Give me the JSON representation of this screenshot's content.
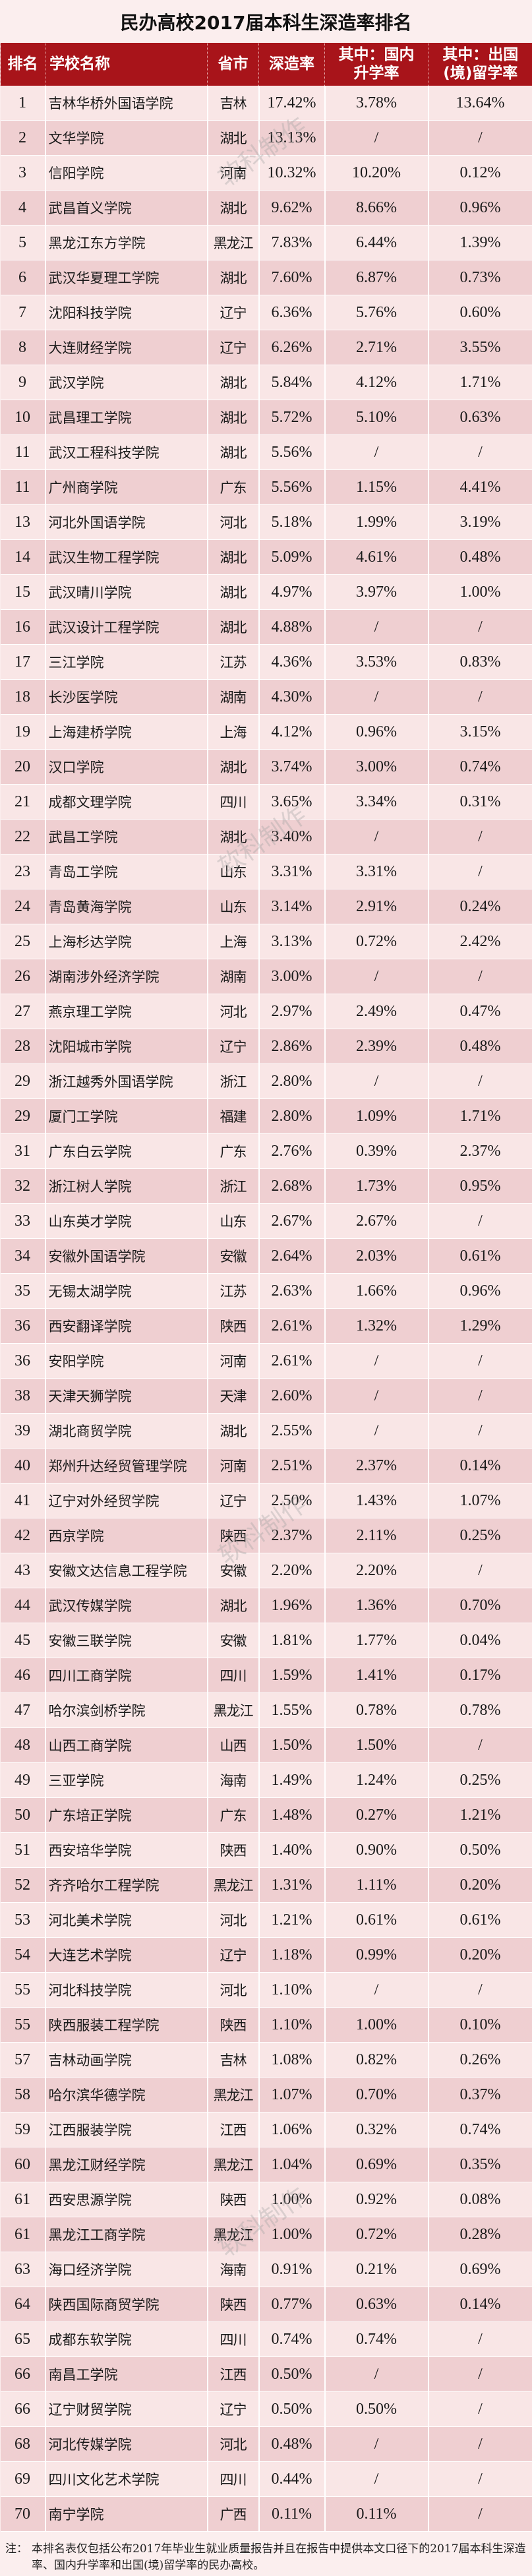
{
  "title": "民办高校2017届本科生深造率排名",
  "headers": {
    "rank": "排名",
    "name": "学校名称",
    "province": "省市",
    "rate": "深造率",
    "domestic_1": "其中：国内",
    "domestic_2": "升学率",
    "abroad_1": "其中：出国",
    "abroad_2": "(境)留学率"
  },
  "rows": [
    [
      "1",
      "吉林华桥外国语学院",
      "吉林",
      "17.42%",
      "3.78%",
      "13.64%"
    ],
    [
      "2",
      "文华学院",
      "湖北",
      "13.13%",
      "/",
      "/"
    ],
    [
      "3",
      "信阳学院",
      "河南",
      "10.32%",
      "10.20%",
      "0.12%"
    ],
    [
      "4",
      "武昌首义学院",
      "湖北",
      "9.62%",
      "8.66%",
      "0.96%"
    ],
    [
      "5",
      "黑龙江东方学院",
      "黑龙江",
      "7.83%",
      "6.44%",
      "1.39%"
    ],
    [
      "6",
      "武汉华夏理工学院",
      "湖北",
      "7.60%",
      "6.87%",
      "0.73%"
    ],
    [
      "7",
      "沈阳科技学院",
      "辽宁",
      "6.36%",
      "5.76%",
      "0.60%"
    ],
    [
      "8",
      "大连财经学院",
      "辽宁",
      "6.26%",
      "2.71%",
      "3.55%"
    ],
    [
      "9",
      "武汉学院",
      "湖北",
      "5.84%",
      "4.12%",
      "1.71%"
    ],
    [
      "10",
      "武昌理工学院",
      "湖北",
      "5.72%",
      "5.10%",
      "0.63%"
    ],
    [
      "11",
      "武汉工程科技学院",
      "湖北",
      "5.56%",
      "/",
      "/"
    ],
    [
      "11",
      "广州商学院",
      "广东",
      "5.56%",
      "1.15%",
      "4.41%"
    ],
    [
      "13",
      "河北外国语学院",
      "河北",
      "5.18%",
      "1.99%",
      "3.19%"
    ],
    [
      "14",
      "武汉生物工程学院",
      "湖北",
      "5.09%",
      "4.61%",
      "0.48%"
    ],
    [
      "15",
      "武汉晴川学院",
      "湖北",
      "4.97%",
      "3.97%",
      "1.00%"
    ],
    [
      "16",
      "武汉设计工程学院",
      "湖北",
      "4.88%",
      "/",
      "/"
    ],
    [
      "17",
      "三江学院",
      "江苏",
      "4.36%",
      "3.53%",
      "0.83%"
    ],
    [
      "18",
      "长沙医学院",
      "湖南",
      "4.30%",
      "/",
      "/"
    ],
    [
      "19",
      "上海建桥学院",
      "上海",
      "4.12%",
      "0.96%",
      "3.15%"
    ],
    [
      "20",
      "汉口学院",
      "湖北",
      "3.74%",
      "3.00%",
      "0.74%"
    ],
    [
      "21",
      "成都文理学院",
      "四川",
      "3.65%",
      "3.34%",
      "0.31%"
    ],
    [
      "22",
      "武昌工学院",
      "湖北",
      "3.40%",
      "/",
      "/"
    ],
    [
      "23",
      "青岛工学院",
      "山东",
      "3.31%",
      "3.31%",
      "/"
    ],
    [
      "24",
      "青岛黄海学院",
      "山东",
      "3.14%",
      "2.91%",
      "0.24%"
    ],
    [
      "25",
      "上海杉达学院",
      "上海",
      "3.13%",
      "0.72%",
      "2.42%"
    ],
    [
      "26",
      "湖南涉外经济学院",
      "湖南",
      "3.00%",
      "/",
      "/"
    ],
    [
      "27",
      "燕京理工学院",
      "河北",
      "2.97%",
      "2.49%",
      "0.47%"
    ],
    [
      "28",
      "沈阳城市学院",
      "辽宁",
      "2.86%",
      "2.39%",
      "0.48%"
    ],
    [
      "29",
      "浙江越秀外国语学院",
      "浙江",
      "2.80%",
      "/",
      "/"
    ],
    [
      "29",
      "厦门工学院",
      "福建",
      "2.80%",
      "1.09%",
      "1.71%"
    ],
    [
      "31",
      "广东白云学院",
      "广东",
      "2.76%",
      "0.39%",
      "2.37%"
    ],
    [
      "32",
      "浙江树人学院",
      "浙江",
      "2.68%",
      "1.73%",
      "0.95%"
    ],
    [
      "33",
      "山东英才学院",
      "山东",
      "2.67%",
      "2.67%",
      "/"
    ],
    [
      "34",
      "安徽外国语学院",
      "安徽",
      "2.64%",
      "2.03%",
      "0.61%"
    ],
    [
      "35",
      "无锡太湖学院",
      "江苏",
      "2.63%",
      "1.66%",
      "0.96%"
    ],
    [
      "36",
      "西安翻译学院",
      "陕西",
      "2.61%",
      "1.32%",
      "1.29%"
    ],
    [
      "36",
      "安阳学院",
      "河南",
      "2.61%",
      "/",
      "/"
    ],
    [
      "38",
      "天津天狮学院",
      "天津",
      "2.60%",
      "/",
      "/"
    ],
    [
      "39",
      "湖北商贸学院",
      "湖北",
      "2.55%",
      "/",
      "/"
    ],
    [
      "40",
      "郑州升达经贸管理学院",
      "河南",
      "2.51%",
      "2.37%",
      "0.14%"
    ],
    [
      "41",
      "辽宁对外经贸学院",
      "辽宁",
      "2.50%",
      "1.43%",
      "1.07%"
    ],
    [
      "42",
      "西京学院",
      "陕西",
      "2.37%",
      "2.11%",
      "0.25%"
    ],
    [
      "43",
      "安徽文达信息工程学院",
      "安徽",
      "2.20%",
      "2.20%",
      "/"
    ],
    [
      "44",
      "武汉传媒学院",
      "湖北",
      "1.96%",
      "1.36%",
      "0.70%"
    ],
    [
      "45",
      "安徽三联学院",
      "安徽",
      "1.81%",
      "1.77%",
      "0.04%"
    ],
    [
      "46",
      "四川工商学院",
      "四川",
      "1.59%",
      "1.41%",
      "0.17%"
    ],
    [
      "47",
      "哈尔滨剑桥学院",
      "黑龙江",
      "1.55%",
      "0.78%",
      "0.78%"
    ],
    [
      "48",
      "山西工商学院",
      "山西",
      "1.50%",
      "1.50%",
      "/"
    ],
    [
      "49",
      "三亚学院",
      "海南",
      "1.49%",
      "1.24%",
      "0.25%"
    ],
    [
      "50",
      "广东培正学院",
      "广东",
      "1.48%",
      "0.27%",
      "1.21%"
    ],
    [
      "51",
      "西安培华学院",
      "陕西",
      "1.40%",
      "0.90%",
      "0.50%"
    ],
    [
      "52",
      "齐齐哈尔工程学院",
      "黑龙江",
      "1.31%",
      "1.11%",
      "0.20%"
    ],
    [
      "53",
      "河北美术学院",
      "河北",
      "1.21%",
      "0.61%",
      "0.61%"
    ],
    [
      "54",
      "大连艺术学院",
      "辽宁",
      "1.18%",
      "0.99%",
      "0.20%"
    ],
    [
      "55",
      "河北科技学院",
      "河北",
      "1.10%",
      "/",
      "/"
    ],
    [
      "55",
      "陕西服装工程学院",
      "陕西",
      "1.10%",
      "1.00%",
      "0.10%"
    ],
    [
      "57",
      "吉林动画学院",
      "吉林",
      "1.08%",
      "0.82%",
      "0.26%"
    ],
    [
      "58",
      "哈尔滨华德学院",
      "黑龙江",
      "1.07%",
      "0.70%",
      "0.37%"
    ],
    [
      "59",
      "江西服装学院",
      "江西",
      "1.06%",
      "0.32%",
      "0.74%"
    ],
    [
      "60",
      "黑龙江财经学院",
      "黑龙江",
      "1.04%",
      "0.69%",
      "0.35%"
    ],
    [
      "61",
      "西安思源学院",
      "陕西",
      "1.00%",
      "0.92%",
      "0.08%"
    ],
    [
      "61",
      "黑龙江工商学院",
      "黑龙江",
      "1.00%",
      "0.72%",
      "0.28%"
    ],
    [
      "63",
      "海口经济学院",
      "海南",
      "0.91%",
      "0.21%",
      "0.69%"
    ],
    [
      "64",
      "陕西国际商贸学院",
      "陕西",
      "0.77%",
      "0.63%",
      "0.14%"
    ],
    [
      "65",
      "成都东软学院",
      "四川",
      "0.74%",
      "0.74%",
      "/"
    ],
    [
      "66",
      "南昌工学院",
      "江西",
      "0.50%",
      "/",
      "/"
    ],
    [
      "66",
      "辽宁财贸学院",
      "辽宁",
      "0.50%",
      "0.50%",
      "/"
    ],
    [
      "68",
      "河北传媒学院",
      "河北",
      "0.48%",
      "/",
      "/"
    ],
    [
      "69",
      "四川文化艺术学院",
      "四川",
      "0.44%",
      "/",
      "/"
    ],
    [
      "70",
      "南宁学院",
      "广西",
      "0.11%",
      "0.11%",
      "/"
    ]
  ],
  "note": {
    "lead": "注：",
    "text": "本排名表仅包括公布2017年毕业生就业质量报告并且在报告中提供本文口径下的2017届本科生深造率、国内升学率和出国(境)留学率的民办高校。"
  },
  "watermark": "软科制作",
  "colors": {
    "header_bg": "#a8141a",
    "row_odd": "#f9e6e6",
    "row_even": "#efcfd1",
    "page_bg": "#fbeeee"
  }
}
